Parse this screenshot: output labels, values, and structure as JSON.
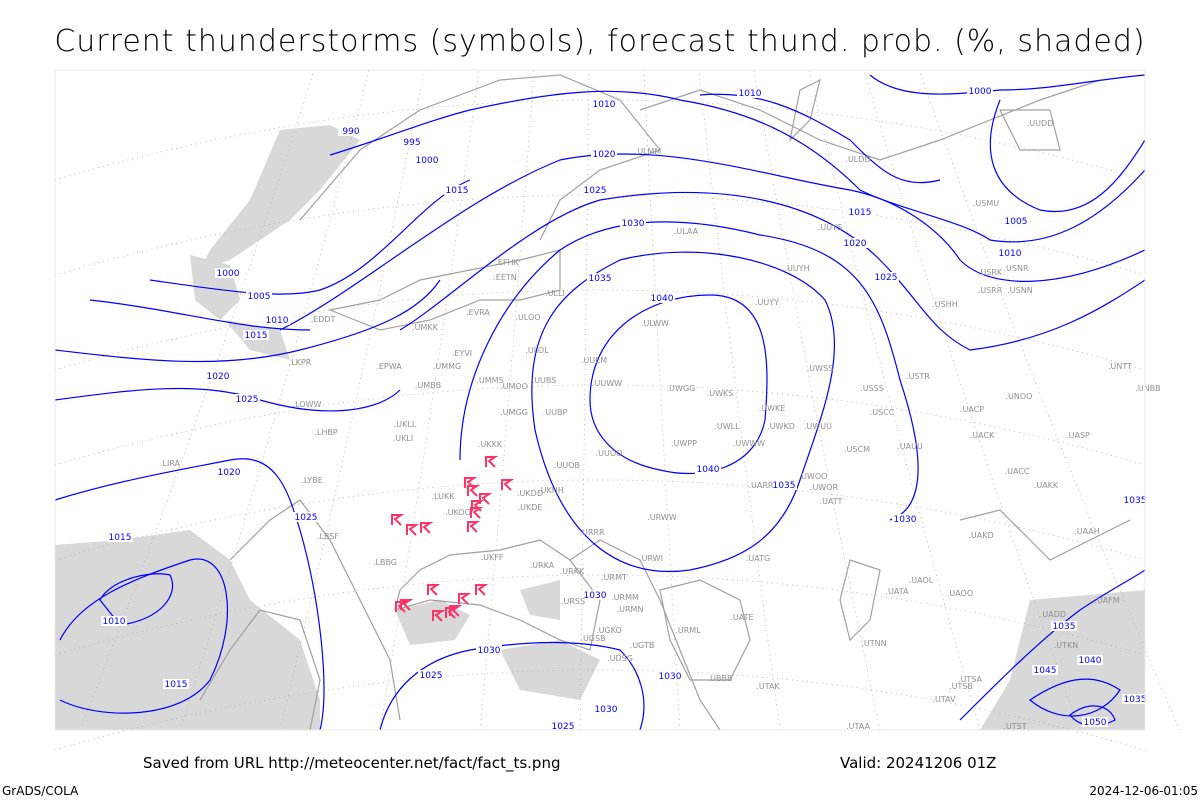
{
  "title": "Current thunderstorms (symbols), forecast thund. prob. (%, shaded)",
  "footer": {
    "saved_from": "Saved from URL http://meteocenter.net/fact/fact_ts.png",
    "valid": "Valid: 20241206 01Z",
    "software": "GrADS/COLA",
    "timestamp": "2024-12-06-01:05"
  },
  "colors": {
    "isobar": "#0000ff",
    "coastline": "#a0a0a0",
    "thunderstorm_symbol": "#ff3366",
    "probability_shading": "#d8d8d8",
    "station_label": "#909090"
  },
  "legend": {
    "symbol_icon": "thunderstorm-flag-icon"
  },
  "isobar_labels": [
    "990",
    "995",
    "1000",
    "1015",
    "1000",
    "1005",
    "1010",
    "1015",
    "1020",
    "1025",
    "1020",
    "1025",
    "1015",
    "1010",
    "1015",
    "1025",
    "1030",
    "1030",
    "1030",
    "1030",
    "1025",
    "1035",
    "1030",
    "1025",
    "1020",
    "1010",
    "1040",
    "1040",
    "1035",
    "1030",
    "1025",
    "1020",
    "1015",
    "1010",
    "1005",
    "1010",
    "1000",
    "1035",
    "1035",
    "1040",
    "1045",
    "1050",
    "1035"
  ],
  "stations": [
    "ULLI",
    "ULOO",
    "EVRA",
    "UMKK",
    "EETN",
    "EFHK",
    "ULOL",
    "UMMG",
    "EYVI",
    "EPWA",
    "UMBB",
    "UMMS",
    "UMOO",
    "UUBS",
    "UMGG",
    "UUBP",
    "UKLL",
    "UKLI",
    "LHBP",
    "LOWW",
    "LKPR",
    "EDDT",
    "LIRA",
    "LYBE",
    "LBSF",
    "LBBG",
    "UKKK",
    "UKHH",
    "UKDD",
    "UKDE",
    "LUKK",
    "UKOO",
    "UKFF",
    "URKA",
    "URKK",
    "URSS",
    "UGSB",
    "UGKO",
    "UGTB",
    "UDSG",
    "UBBB",
    "URMT",
    "URMM",
    "URMN",
    "URRR",
    "UUOO",
    "UUOB",
    "UUEM",
    "UUWW",
    "ULWW",
    "UUYY",
    "UUYH",
    "UWPP",
    "UWGG",
    "UWKS",
    "UWLL",
    "UWWW",
    "UWKE",
    "UWKD",
    "UWUU",
    "UWSS",
    "USSS",
    "USCC",
    "USCM",
    "UAUU",
    "UWOO",
    "UWOR",
    "UATT",
    "UARR",
    "URWW",
    "URWI",
    "UATG",
    "UATE",
    "URML",
    "UTAK",
    "UTAA",
    "UTNN",
    "UATA",
    "UAOL",
    "UAOO",
    "UAKD",
    "UAKK",
    "UACC",
    "UACK",
    "UASP",
    "UAAH",
    "UAFM",
    "UADD",
    "UTKN",
    "UTSA",
    "UTSB",
    "UTAV",
    "UTST",
    "UACP",
    "UNOO",
    "USTR",
    "USHH",
    "USRR",
    "USNN",
    "USRK",
    "USNR",
    "UUYS",
    "ULAA",
    "ULMM",
    "UUDD",
    "ULDD",
    "USMU",
    "UNTT",
    "UNBB"
  ],
  "thunderstorm_count": 19
}
